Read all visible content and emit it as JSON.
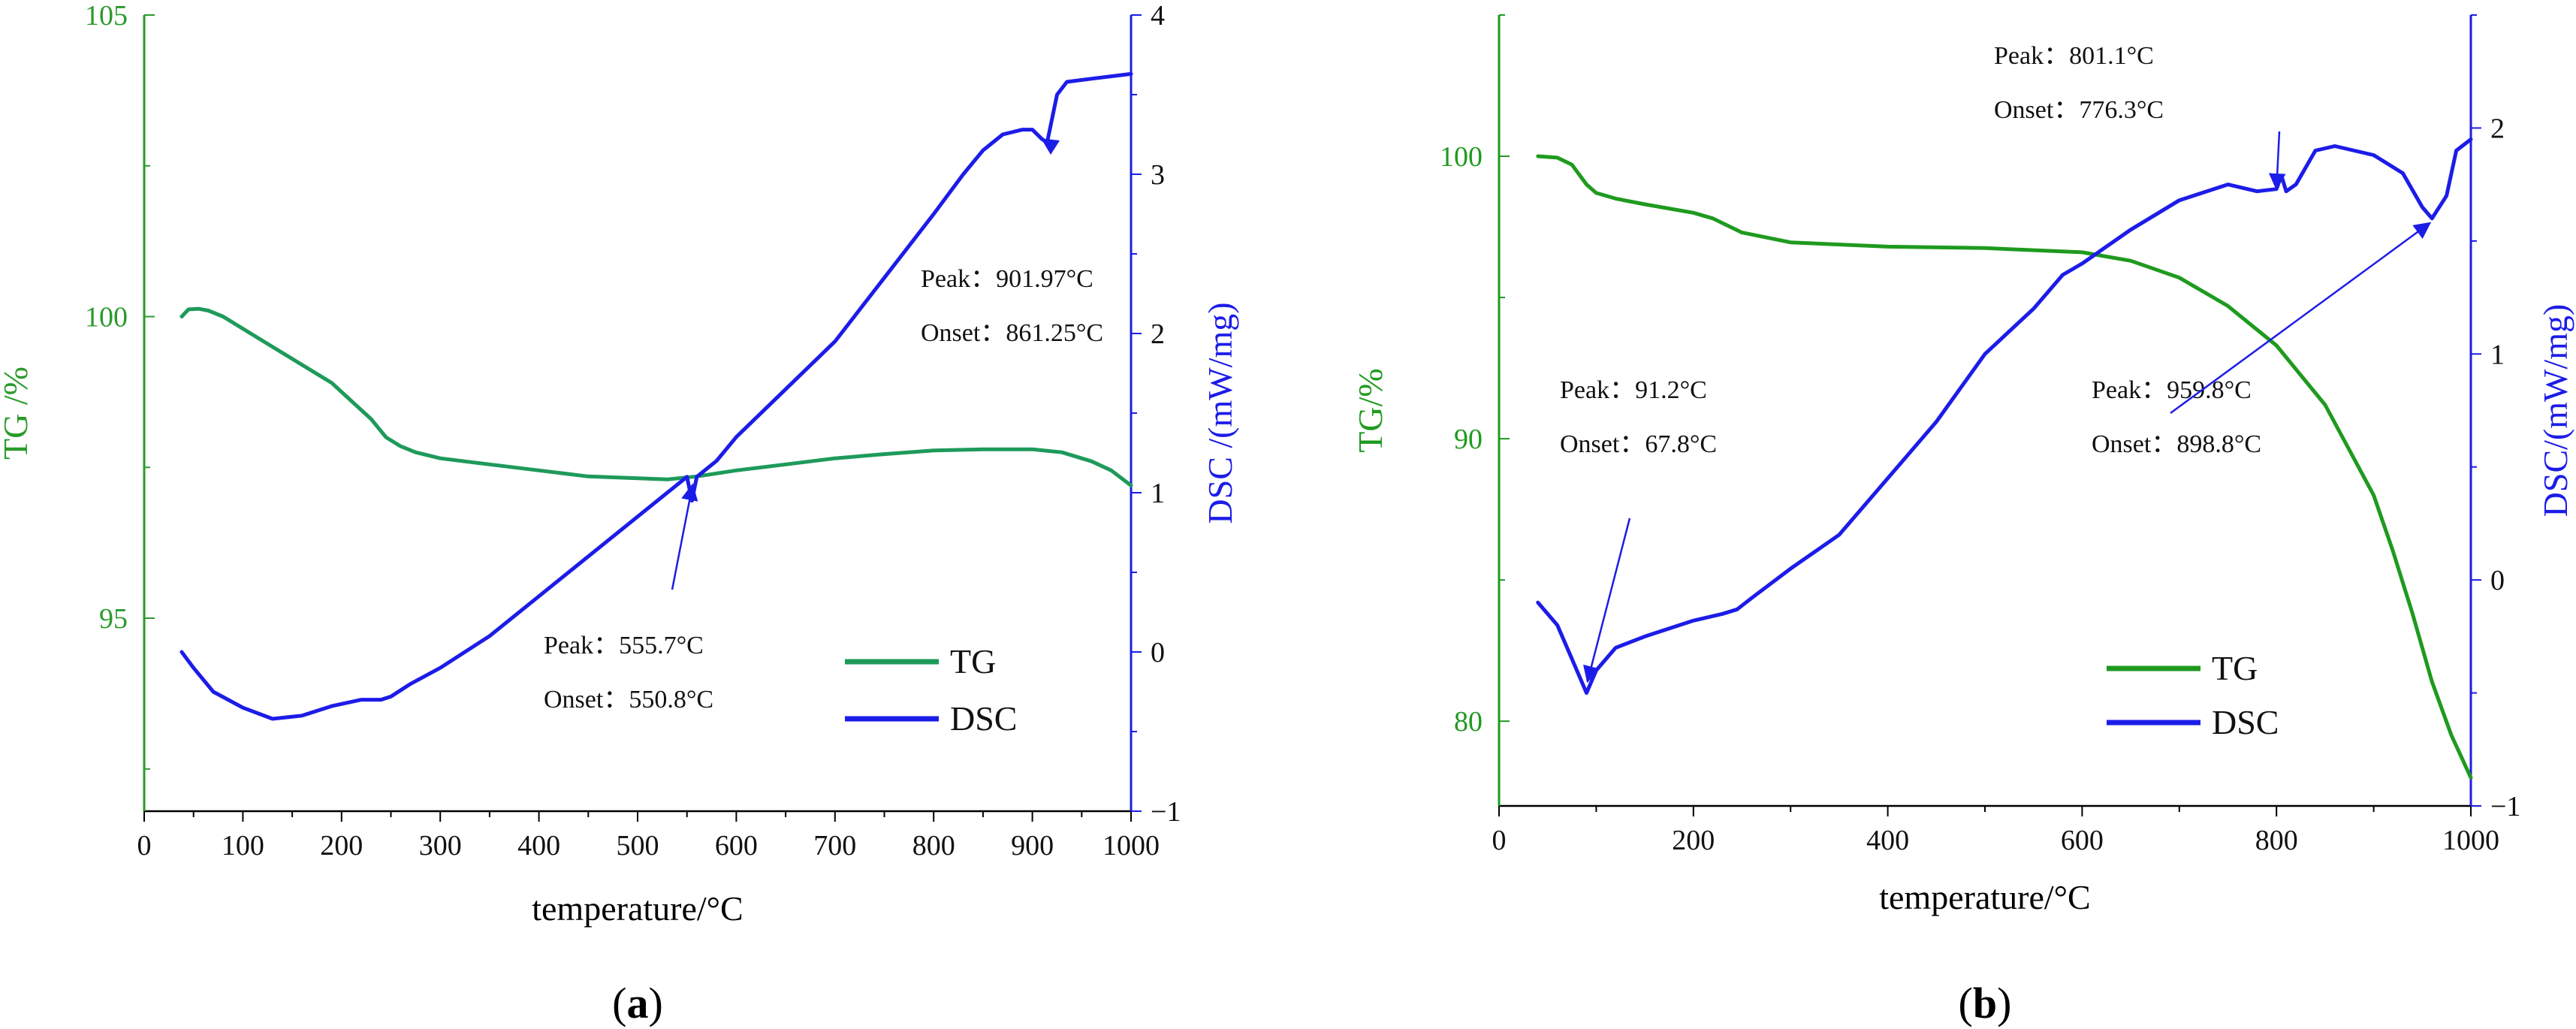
{
  "chart_data": [
    {
      "panel_label": "(a)",
      "type": "line",
      "title": "",
      "xlabel": "temperature/°C",
      "y1label": "TG /%",
      "y2label": "DSC /(mW/mg)",
      "xlim": [
        0,
        1000
      ],
      "y1lim": [
        91.8,
        105
      ],
      "y2lim": [
        -1,
        4
      ],
      "x_ticks": [
        0,
        100,
        200,
        300,
        400,
        500,
        600,
        700,
        800,
        900,
        1000
      ],
      "y1_ticks": [
        95,
        100,
        105
      ],
      "y2_ticks": [
        -1,
        0,
        1,
        2,
        3,
        4
      ],
      "grid": false,
      "legend": [
        "TG",
        "DSC"
      ],
      "legend_position": "bottom-right",
      "colors": {
        "TG": "#1e9a5a",
        "DSC": "#1c1ce8",
        "y1axis": "#2a9a2a",
        "y2axis": "#1c1ce8"
      },
      "series": [
        {
          "name": "TG",
          "axis": "y1",
          "x": [
            38,
            45,
            55,
            65,
            80,
            100,
            130,
            160,
            190,
            210,
            230,
            245,
            260,
            275,
            300,
            350,
            400,
            450,
            500,
            530,
            560,
            600,
            650,
            700,
            750,
            800,
            850,
            900,
            930,
            960,
            980,
            1000
          ],
          "y": [
            100.0,
            100.12,
            100.13,
            100.1,
            100.0,
            99.8,
            99.5,
            99.2,
            98.9,
            98.6,
            98.3,
            98.0,
            97.85,
            97.75,
            97.65,
            97.55,
            97.45,
            97.35,
            97.32,
            97.3,
            97.35,
            97.45,
            97.55,
            97.65,
            97.72,
            97.78,
            97.8,
            97.8,
            97.75,
            97.6,
            97.45,
            97.2
          ]
        },
        {
          "name": "DSC",
          "axis": "y2",
          "x": [
            38,
            50,
            70,
            100,
            130,
            160,
            190,
            220,
            240,
            250,
            270,
            300,
            350,
            400,
            450,
            500,
            540,
            550,
            555,
            560,
            580,
            600,
            650,
            700,
            750,
            800,
            830,
            850,
            870,
            890,
            900,
            910,
            915,
            925,
            935,
            960,
            1000
          ],
          "y": [
            0.0,
            -0.1,
            -0.25,
            -0.35,
            -0.42,
            -0.4,
            -0.34,
            -0.3,
            -0.3,
            -0.28,
            -0.2,
            -0.1,
            0.1,
            0.35,
            0.6,
            0.85,
            1.05,
            1.1,
            0.95,
            1.1,
            1.2,
            1.35,
            1.65,
            1.95,
            2.35,
            2.75,
            3.0,
            3.15,
            3.25,
            3.28,
            3.28,
            3.22,
            3.2,
            3.5,
            3.58,
            3.6,
            3.63
          ]
        }
      ],
      "annotations": [
        {
          "peak_label": "Peak",
          "peak_value": "555.7°C",
          "onset_label": "Onset",
          "onset_value": "550.8°C",
          "target": [
            555.7,
            1.05
          ]
        },
        {
          "peak_label": "Peak",
          "peak_value": "901.97°C",
          "onset_label": "Onset",
          "onset_value": "861.25°C",
          "target": [
            910,
            3.22
          ]
        }
      ]
    },
    {
      "panel_label": "(b)",
      "type": "line",
      "title": "",
      "xlabel": "temperature/°C",
      "y1label": "TG/%",
      "y2label": "DSC/(mW/mg)",
      "xlim": [
        0,
        1000
      ],
      "y1lim": [
        77,
        105
      ],
      "y2lim": [
        -1,
        2.5
      ],
      "x_ticks": [
        0,
        200,
        400,
        600,
        800,
        1000
      ],
      "y1_ticks": [
        80,
        90,
        100
      ],
      "y2_ticks": [
        -1,
        0,
        1,
        2
      ],
      "grid": false,
      "legend": [
        "TG",
        "DSC"
      ],
      "legend_position": "bottom-right",
      "colors": {
        "TG": "#1f9a1f",
        "DSC": "#1c1ce8",
        "y1axis": "#1f9a1f",
        "y2axis": "#1c1ce8"
      },
      "series": [
        {
          "name": "TG",
          "axis": "y1",
          "x": [
            40,
            60,
            75,
            90,
            100,
            120,
            150,
            200,
            220,
            250,
            300,
            400,
            500,
            600,
            650,
            700,
            750,
            800,
            850,
            900,
            920,
            940,
            960,
            980,
            1000
          ],
          "y": [
            100.0,
            99.95,
            99.7,
            99.0,
            98.7,
            98.5,
            98.3,
            98.0,
            97.8,
            97.3,
            96.95,
            96.8,
            96.75,
            96.6,
            96.3,
            95.7,
            94.7,
            93.3,
            91.2,
            88.0,
            86.0,
            83.8,
            81.4,
            79.5,
            78.0
          ]
        },
        {
          "name": "DSC",
          "axis": "y2",
          "x": [
            40,
            60,
            75,
            90,
            100,
            120,
            150,
            200,
            230,
            245,
            260,
            300,
            350,
            400,
            450,
            500,
            550,
            580,
            600,
            650,
            700,
            750,
            780,
            800,
            805,
            810,
            820,
            840,
            860,
            900,
            930,
            950,
            960,
            975,
            985,
            1000
          ],
          "y": [
            -0.1,
            -0.2,
            -0.35,
            -0.5,
            -0.4,
            -0.3,
            -0.25,
            -0.18,
            -0.15,
            -0.13,
            -0.08,
            0.05,
            0.2,
            0.45,
            0.7,
            1.0,
            1.2,
            1.35,
            1.4,
            1.55,
            1.68,
            1.75,
            1.72,
            1.73,
            1.79,
            1.72,
            1.75,
            1.9,
            1.92,
            1.88,
            1.8,
            1.65,
            1.6,
            1.7,
            1.9,
            1.95
          ]
        }
      ],
      "annotations": [
        {
          "peak_label": "Peak",
          "peak_value": "91.2°C",
          "onset_label": "Onset",
          "onset_value": "67.8°C",
          "target": [
            91,
            -0.45
          ]
        },
        {
          "peak_label": "Peak",
          "peak_value": "801.1°C",
          "onset_label": "Onset",
          "onset_value": "776.3°C",
          "target": [
            800,
            1.73
          ]
        },
        {
          "peak_label": "Peak",
          "peak_value": "959.8°C",
          "onset_label": "Onset",
          "onset_value": "898.8°C",
          "target": [
            958,
            1.58
          ]
        }
      ]
    }
  ]
}
